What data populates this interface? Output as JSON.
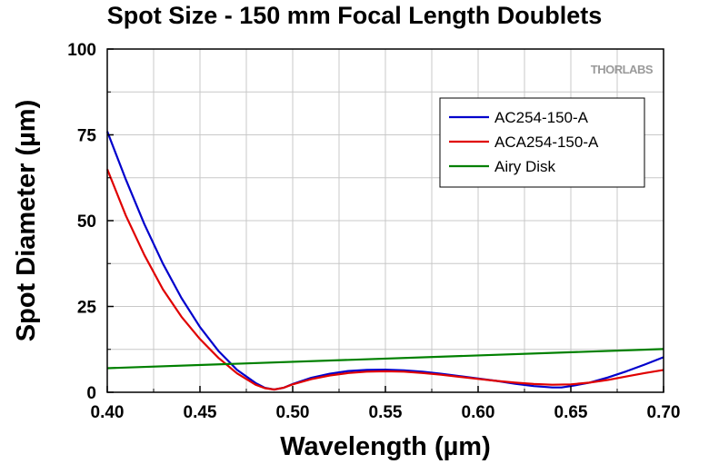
{
  "chart_data": {
    "type": "line",
    "title": "Spot Size - 150 mm Focal Length Doublets",
    "xlabel": "Wavelength (µm)",
    "ylabel": "Spot Diameter (µm)",
    "xlim": [
      0.4,
      0.7
    ],
    "ylim": [
      0,
      100
    ],
    "xticks": [
      "0.40",
      "0.45",
      "0.50",
      "0.55",
      "0.60",
      "0.65",
      "0.70"
    ],
    "yticks": [
      "0",
      "25",
      "50",
      "75",
      "100"
    ],
    "grid": true,
    "legend_position": "top-right",
    "watermark": "THORLABS",
    "series": [
      {
        "name": "AC254-150-A",
        "color": "#0000cc",
        "x": [
          0.4,
          0.41,
          0.42,
          0.43,
          0.44,
          0.45,
          0.46,
          0.47,
          0.48,
          0.485,
          0.49,
          0.495,
          0.5,
          0.51,
          0.52,
          0.53,
          0.54,
          0.55,
          0.56,
          0.57,
          0.58,
          0.59,
          0.6,
          0.61,
          0.62,
          0.63,
          0.64,
          0.645,
          0.65,
          0.66,
          0.67,
          0.68,
          0.69,
          0.7
        ],
        "y": [
          76,
          62,
          49,
          37.5,
          27.5,
          19,
          12,
          6.5,
          2.7,
          1.3,
          0.8,
          1.3,
          2.4,
          4.2,
          5.4,
          6.2,
          6.5,
          6.6,
          6.4,
          6.0,
          5.4,
          4.7,
          4.0,
          3.3,
          2.5,
          1.8,
          1.4,
          1.4,
          1.8,
          2.8,
          4.3,
          6.1,
          8.1,
          10.2
        ]
      },
      {
        "name": "ACA254-150-A",
        "color": "#e00000",
        "x": [
          0.4,
          0.41,
          0.42,
          0.43,
          0.44,
          0.45,
          0.46,
          0.47,
          0.48,
          0.485,
          0.49,
          0.495,
          0.5,
          0.51,
          0.52,
          0.53,
          0.54,
          0.55,
          0.56,
          0.57,
          0.58,
          0.59,
          0.6,
          0.61,
          0.62,
          0.63,
          0.64,
          0.65,
          0.66,
          0.67,
          0.68,
          0.69,
          0.7
        ],
        "y": [
          65,
          51.5,
          40,
          30,
          22,
          15.5,
          10,
          5.5,
          2.2,
          1.2,
          0.8,
          1.3,
          2.3,
          3.8,
          4.9,
          5.6,
          6.0,
          6.1,
          6.0,
          5.6,
          5.1,
          4.5,
          3.9,
          3.3,
          2.8,
          2.4,
          2.2,
          2.3,
          2.8,
          3.6,
          4.6,
          5.6,
          6.5
        ]
      },
      {
        "name": "Airy Disk",
        "color": "#008000",
        "x": [
          0.4,
          0.7
        ],
        "y": [
          7.0,
          12.6
        ]
      }
    ]
  }
}
